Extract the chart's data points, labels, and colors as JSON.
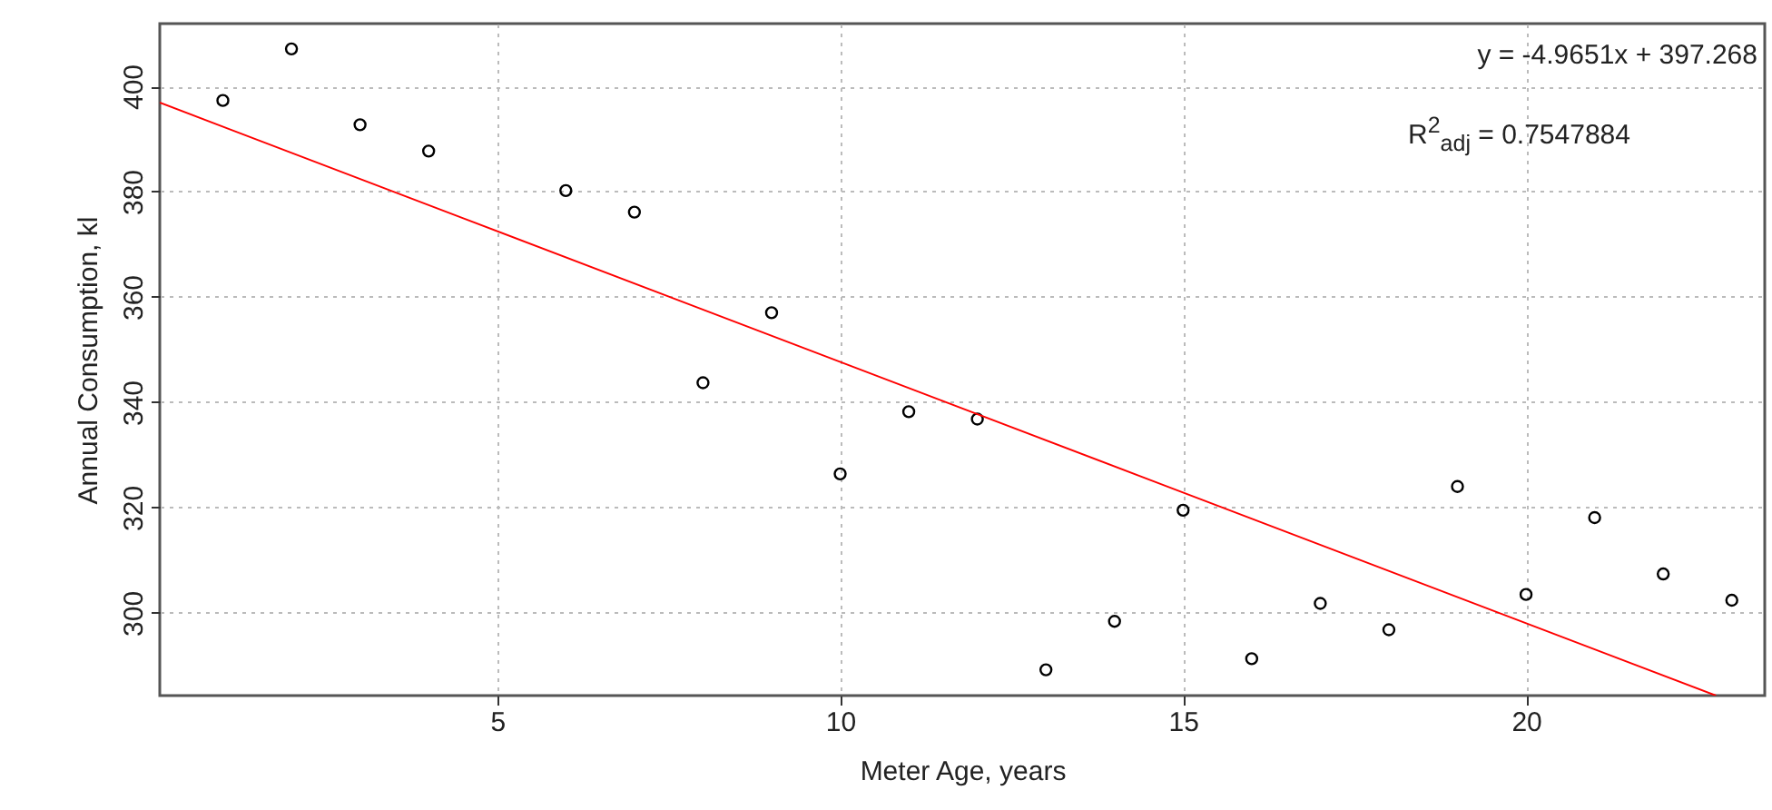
{
  "chart_data": {
    "type": "scatter",
    "xlabel": "Meter Age, years",
    "ylabel": "Annual Consumption, kl",
    "x": [
      1,
      2,
      3,
      4,
      6,
      7,
      8,
      9,
      10,
      11,
      12,
      13,
      14,
      15,
      16,
      17,
      18,
      19,
      20,
      21,
      22,
      23
    ],
    "series": [
      {
        "type": "scatter",
        "color": "#000000",
        "marker": "circle",
        "values": [
          397.3,
          407.1,
          392.7,
          387.7,
          380.2,
          376.1,
          343.7,
          357.0,
          326.4,
          338.2,
          336.8,
          289.2,
          298.4,
          319.5,
          291.3,
          301.8,
          296.8,
          324.0,
          303.5,
          318.1,
          307.4,
          302.4
        ]
      },
      {
        "type": "line",
        "color": "#ff0000",
        "x": [
          0.08,
          22.77
        ],
        "values": [
          396.9,
          284.3
        ],
        "marker": "none",
        "line_style": "solid"
      }
    ],
    "xlim": [
      0.08,
      23.48
    ],
    "ylim": [
      284.3,
      411.9
    ],
    "xticks": [
      5,
      10,
      15,
      20
    ],
    "yticks": [
      300,
      320,
      340,
      360,
      380,
      400
    ],
    "grid": true,
    "annotations": [
      "y = -4.9651x + 397.268",
      "R$^{2}$$_{adj}$ = 0.7547884"
    ]
  }
}
